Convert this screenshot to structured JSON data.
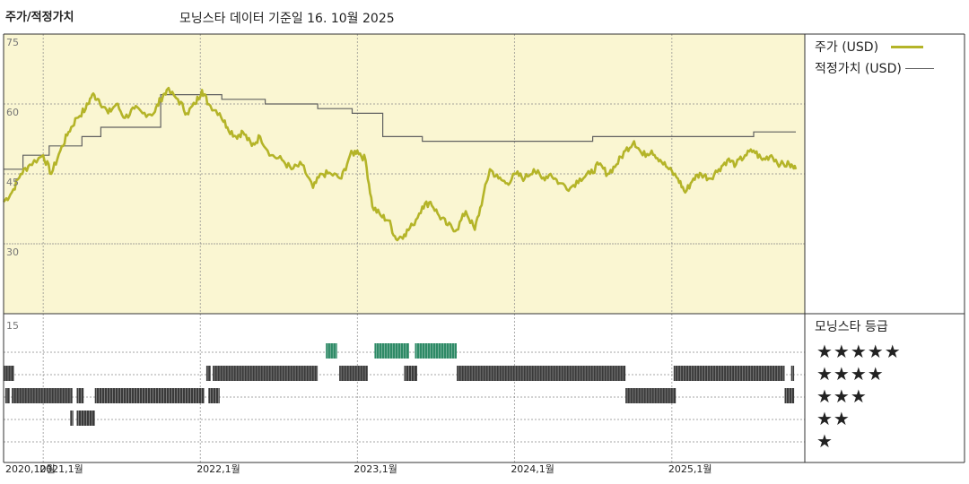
{
  "header": {
    "left_title": "주가/적정가치",
    "data_source": "모닝스타 데이터 기준일 16. 10월 2025"
  },
  "legend": {
    "price_label": "주가 (USD)",
    "fair_value_label": "적정가치 (USD)",
    "rating_title": "모닝스타 등급"
  },
  "colors": {
    "price": "#b4b428",
    "fair_value": "#606060",
    "plot_bg": "#faf6d2",
    "rating_dark": "#3a3a3a",
    "rating_green": "#2e8a66"
  },
  "chart_data": [
    {
      "type": "line",
      "y_ticks": [
        "75",
        "60",
        "45",
        "30"
      ],
      "ylim": [
        15,
        75
      ],
      "x_tick_labels": [
        "2020,10월",
        "2021,1월",
        "2022,1월",
        "2023,1월",
        "2024,1월",
        "2025,1월"
      ],
      "xlim": [
        "2020-10-01",
        "2025-10-16"
      ],
      "series": [
        {
          "name": "주가 (USD)",
          "points": [
            [
              "2020-10-01",
              39
            ],
            [
              "2020-10-20",
              41
            ],
            [
              "2020-11-10",
              45
            ],
            [
              "2020-12-01",
              47
            ],
            [
              "2021-01-01",
              49
            ],
            [
              "2021-01-20",
              45
            ],
            [
              "2021-02-10",
              50
            ],
            [
              "2021-03-01",
              54
            ],
            [
              "2021-03-20",
              57
            ],
            [
              "2021-04-10",
              59
            ],
            [
              "2021-04-25",
              62
            ],
            [
              "2021-05-10",
              61
            ],
            [
              "2021-06-01",
              58
            ],
            [
              "2021-06-20",
              60
            ],
            [
              "2021-07-10",
              57
            ],
            [
              "2021-08-01",
              59
            ],
            [
              "2021-08-20",
              58
            ],
            [
              "2021-09-15",
              58
            ],
            [
              "2021-10-01",
              61
            ],
            [
              "2021-10-15",
              63
            ],
            [
              "2021-11-10",
              61
            ],
            [
              "2021-12-01",
              58
            ],
            [
              "2021-12-20",
              60
            ],
            [
              "2022-01-05",
              63
            ],
            [
              "2022-01-20",
              60
            ],
            [
              "2022-02-15",
              58
            ],
            [
              "2022-03-05",
              55
            ],
            [
              "2022-03-25",
              53
            ],
            [
              "2022-04-10",
              54
            ],
            [
              "2022-05-01",
              51
            ],
            [
              "2022-05-20",
              53
            ],
            [
              "2022-06-15",
              49
            ],
            [
              "2022-07-10",
              48
            ],
            [
              "2022-08-01",
              46
            ],
            [
              "2022-08-25",
              47
            ],
            [
              "2022-09-20",
              42
            ],
            [
              "2022-10-10",
              45
            ],
            [
              "2022-11-01",
              45
            ],
            [
              "2022-11-25",
              44
            ],
            [
              "2022-12-15",
              49
            ],
            [
              "2023-01-01",
              50
            ],
            [
              "2023-01-20",
              48
            ],
            [
              "2023-02-05",
              38
            ],
            [
              "2023-02-25",
              36
            ],
            [
              "2023-03-15",
              35
            ],
            [
              "2023-04-01",
              31
            ],
            [
              "2023-04-20",
              32
            ],
            [
              "2023-05-10",
              34
            ],
            [
              "2023-06-01",
              38
            ],
            [
              "2023-06-20",
              39
            ],
            [
              "2023-07-10",
              36
            ],
            [
              "2023-07-30",
              34
            ],
            [
              "2023-08-20",
              33
            ],
            [
              "2023-09-10",
              37
            ],
            [
              "2023-10-01",
              33
            ],
            [
              "2023-10-20",
              40
            ],
            [
              "2023-11-05",
              46
            ],
            [
              "2023-11-25",
              44
            ],
            [
              "2023-12-15",
              43
            ],
            [
              "2024-01-05",
              45
            ],
            [
              "2024-01-25",
              44
            ],
            [
              "2024-02-15",
              46
            ],
            [
              "2024-03-05",
              44
            ],
            [
              "2024-03-25",
              45
            ],
            [
              "2024-04-15",
              43
            ],
            [
              "2024-05-10",
              42
            ],
            [
              "2024-06-01",
              44
            ],
            [
              "2024-06-25",
              45
            ],
            [
              "2024-07-15",
              47
            ],
            [
              "2024-08-05",
              45
            ],
            [
              "2024-08-25",
              47
            ],
            [
              "2024-09-15",
              50
            ],
            [
              "2024-10-05",
              52
            ],
            [
              "2024-10-25",
              49
            ],
            [
              "2024-11-15",
              50
            ],
            [
              "2024-12-05",
              48
            ],
            [
              "2024-12-25",
              46
            ],
            [
              "2025-01-15",
              44
            ],
            [
              "2025-02-01",
              41
            ],
            [
              "2025-02-20",
              44
            ],
            [
              "2025-03-10",
              45
            ],
            [
              "2025-03-30",
              44
            ],
            [
              "2025-04-20",
              46
            ],
            [
              "2025-05-10",
              48
            ],
            [
              "2025-05-30",
              47
            ],
            [
              "2025-06-20",
              49
            ],
            [
              "2025-07-10",
              50
            ],
            [
              "2025-07-30",
              48
            ],
            [
              "2025-08-20",
              49
            ],
            [
              "2025-09-10",
              47
            ],
            [
              "2025-10-01",
              47
            ],
            [
              "2025-10-16",
              46
            ]
          ]
        },
        {
          "name": "적정가치 (USD)",
          "step_points": [
            [
              "2020-10-01",
              46
            ],
            [
              "2020-11-15",
              49
            ],
            [
              "2021-01-15",
              51
            ],
            [
              "2021-04-01",
              53
            ],
            [
              "2021-05-15",
              55
            ],
            [
              "2021-10-01",
              62
            ],
            [
              "2022-01-10",
              62
            ],
            [
              "2022-02-20",
              61
            ],
            [
              "2022-06-01",
              60
            ],
            [
              "2022-10-01",
              59
            ],
            [
              "2022-12-20",
              58
            ],
            [
              "2023-03-01",
              53
            ],
            [
              "2023-06-01",
              52
            ],
            [
              "2024-01-15",
              52
            ],
            [
              "2024-07-01",
              53
            ],
            [
              "2025-07-10",
              54
            ],
            [
              "2025-10-16",
              54
            ]
          ]
        }
      ]
    },
    {
      "type": "heatmap",
      "title": "모닝스타 등급",
      "y_tick": "15",
      "rows": [
        "★★★★★",
        "★★★★",
        "★★★",
        "★★",
        "★"
      ],
      "periods": [
        {
          "stars": 5,
          "start": "2022-10-20",
          "end": "2022-11-15"
        },
        {
          "stars": 5,
          "start": "2023-02-10",
          "end": "2023-05-01"
        },
        {
          "stars": 5,
          "start": "2023-05-15",
          "end": "2023-08-20"
        },
        {
          "stars": 4,
          "start": "2020-10-01",
          "end": "2020-10-25"
        },
        {
          "stars": 4,
          "start": "2022-01-15",
          "end": "2022-01-25"
        },
        {
          "stars": 4,
          "start": "2022-01-30",
          "end": "2022-10-01"
        },
        {
          "stars": 4,
          "start": "2022-11-20",
          "end": "2023-01-25"
        },
        {
          "stars": 4,
          "start": "2023-04-20",
          "end": "2023-05-20"
        },
        {
          "stars": 4,
          "start": "2023-08-20",
          "end": "2024-09-15"
        },
        {
          "stars": 4,
          "start": "2025-01-05",
          "end": "2025-09-20"
        },
        {
          "stars": 4,
          "start": "2025-10-05",
          "end": "2025-10-12"
        },
        {
          "stars": 3,
          "start": "2020-10-05",
          "end": "2020-10-15"
        },
        {
          "stars": 3,
          "start": "2020-10-20",
          "end": "2021-03-10"
        },
        {
          "stars": 3,
          "start": "2021-03-20",
          "end": "2021-04-05"
        },
        {
          "stars": 3,
          "start": "2021-05-01",
          "end": "2022-01-10"
        },
        {
          "stars": 3,
          "start": "2022-01-20",
          "end": "2022-02-15"
        },
        {
          "stars": 3,
          "start": "2024-09-15",
          "end": "2025-01-10"
        },
        {
          "stars": 3,
          "start": "2025-09-20",
          "end": "2025-10-12"
        },
        {
          "stars": 2,
          "start": "2021-03-05",
          "end": "2021-03-12"
        },
        {
          "stars": 2,
          "start": "2021-03-20",
          "end": "2021-05-01"
        }
      ]
    }
  ]
}
